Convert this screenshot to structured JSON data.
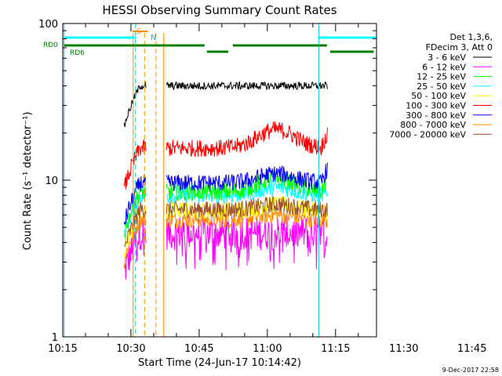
{
  "chart_data": {
    "type": "line",
    "title": "HESSI Observing Summary Count Rates",
    "xlabel": "Start Time (24-Jun-17 10:14:42)",
    "ylabel": "Count Rate (s⁻¹ detector⁻¹)",
    "y_scale": "log",
    "ylim": [
      1,
      100
    ],
    "xlim_minutes_after_10:00": [
      15,
      84
    ],
    "x_tick_labels": [
      "10:15",
      "10:30",
      "10:45",
      "11:00",
      "11:15",
      "11:30",
      "11:45"
    ],
    "y_tick_labels": [
      "1",
      "10",
      "100"
    ],
    "footer_date": "9-Dec-2017 22:58",
    "legend_header": [
      "Det 1,3,6,",
      "FDecim 3, Att 0"
    ],
    "series": [
      {
        "name": "3 - 6 keV",
        "color": "#000000",
        "level_main": 40,
        "level_flare": 40,
        "level_late": 40
      },
      {
        "name": "6 - 12 keV",
        "color": "#ff00ff",
        "level_main": 4.6,
        "level_flare": 4.6,
        "level_late": 4.6
      },
      {
        "name": "12 - 25 keV",
        "color": "#00ff00",
        "level_main": 8.4,
        "level_flare": 10.3,
        "level_late": 8.4
      },
      {
        "name": "25 - 50 keV",
        "color": "#00ffff",
        "level_main": 8.0,
        "level_flare": 9.0,
        "level_late": 8.0
      },
      {
        "name": "50 - 100 keV",
        "color": "#ffff00",
        "level_main": 6.4,
        "level_flare": 7.0,
        "level_late": 6.4
      },
      {
        "name": "100 - 300 keV",
        "color": "#ff0000",
        "level_main": 16,
        "level_flare": 21,
        "level_late": 16
      },
      {
        "name": "300 - 800 keV",
        "color": "#0000ff",
        "level_main": 9.6,
        "level_flare": 11,
        "level_late": 9.6
      },
      {
        "name": "800 - 7000 keV",
        "color": "#ff8c00",
        "level_main": 5.6,
        "level_flare": 6.0,
        "level_late": 5.6
      },
      {
        "name": "7000 - 20000 keV",
        "color": "#a0522d",
        "level_main": 6.5,
        "level_flare": 7.0,
        "level_late": 6.5
      }
    ],
    "data_start_minute": 28.5,
    "data_gap_minutes": [
      33.4,
      37.8
    ],
    "data_end_minute": 73.3,
    "flare_peak_minute": 62,
    "markers": {
      "cyan_lines": [
        15.3,
        31.0,
        71.3,
        84.0
      ],
      "orange_lines": [
        30.5,
        33.0,
        35.5,
        37.2
      ],
      "S_label": "S",
      "N_label": "N",
      "RD0_label": "RD0",
      "RD6_label": "RD6"
    },
    "top_bars": {
      "cyan_segments": [
        [
          15.3,
          31.0
        ],
        [
          71.3,
          84.0
        ]
      ],
      "green_segments": [
        [
          15.3,
          46.2
        ],
        [
          46.7,
          51.4
        ],
        [
          52.4,
          73.1
        ],
        [
          73.8,
          83.4
        ]
      ],
      "orange_segment": [
        30.3,
        33.7
      ]
    }
  }
}
